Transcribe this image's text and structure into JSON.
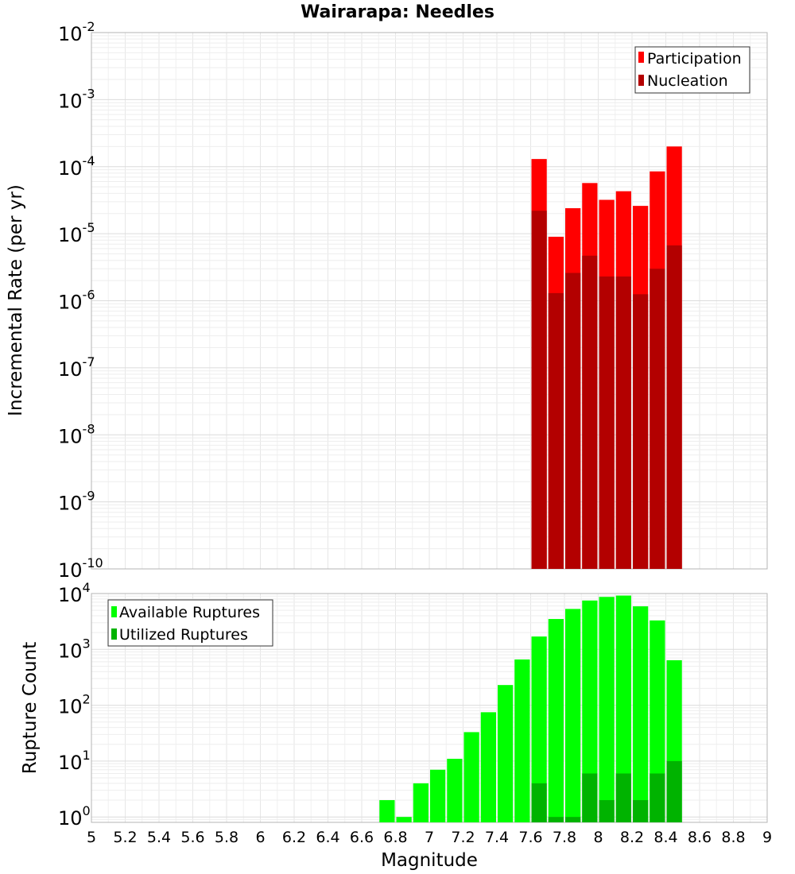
{
  "chart_data": [
    {
      "type": "bar",
      "title": "Wairarapa: Needles",
      "ylabel": "Incremental Rate (per yr)",
      "xlabel": "",
      "y_scale": "log",
      "ylim": [
        1e-10,
        0.01
      ],
      "xlim": [
        5,
        9
      ],
      "bin_width": 0.1,
      "y_exponents": [
        "-10",
        "-9",
        "-8",
        "-7",
        "-6",
        "-5",
        "-4",
        "-3",
        "-2"
      ],
      "legend": {
        "placement": "top-right",
        "entries": [
          "Participation",
          "Nucleation"
        ]
      },
      "series": [
        {
          "name": "Participation",
          "color": "#ff0000",
          "x": [
            7.65,
            7.75,
            7.85,
            7.95,
            8.05,
            8.15,
            8.25,
            8.35,
            8.45
          ],
          "values": [
            0.00013,
            9e-06,
            2.4e-05,
            5.7e-05,
            3.2e-05,
            4.3e-05,
            2.6e-05,
            8.5e-05,
            0.0002
          ]
        },
        {
          "name": "Nucleation",
          "color": "#b30000",
          "x": [
            7.65,
            7.75,
            7.85,
            7.95,
            8.05,
            8.15,
            8.25,
            8.35,
            8.45
          ],
          "values": [
            2.2e-05,
            1.3e-06,
            2.6e-06,
            4.7e-06,
            2.3e-06,
            2.3e-06,
            1.25e-06,
            3e-06,
            6.7e-06
          ]
        }
      ]
    },
    {
      "type": "bar",
      "title": "",
      "ylabel": "Rupture Count",
      "xlabel": "Magnitude",
      "y_scale": "log",
      "ylim": [
        0.8,
        10000
      ],
      "xlim": [
        5,
        9
      ],
      "bin_width": 0.1,
      "y_exponents": [
        "0",
        "1",
        "2",
        "3",
        "4"
      ],
      "x_ticks": [
        "5",
        "5.2",
        "5.4",
        "5.6",
        "5.8",
        "6",
        "6.2",
        "6.4",
        "6.6",
        "6.8",
        "7",
        "7.2",
        "7.4",
        "7.6",
        "7.8",
        "8",
        "8.2",
        "8.4",
        "8.6",
        "8.8",
        "9"
      ],
      "legend": {
        "placement": "top-left",
        "entries": [
          "Available Ruptures",
          "Utilized Ruptures"
        ]
      },
      "series": [
        {
          "name": "Available Ruptures",
          "color": "#00ff00",
          "x": [
            6.75,
            6.85,
            6.95,
            7.05,
            7.15,
            7.25,
            7.35,
            7.45,
            7.55,
            7.65,
            7.75,
            7.85,
            7.95,
            8.05,
            8.15,
            8.25,
            8.35,
            8.45
          ],
          "values": [
            2,
            1,
            4,
            7,
            11,
            33,
            75,
            230,
            660,
            1700,
            3500,
            5300,
            7500,
            8700,
            9200,
            5900,
            3300,
            640
          ]
        },
        {
          "name": "Utilized Ruptures",
          "color": "#00b300",
          "x": [
            7.65,
            7.75,
            7.85,
            7.95,
            8.05,
            8.15,
            8.25,
            8.35,
            8.45
          ],
          "values": [
            4,
            1,
            1,
            6,
            2,
            6,
            2,
            6,
            10
          ]
        }
      ]
    }
  ]
}
